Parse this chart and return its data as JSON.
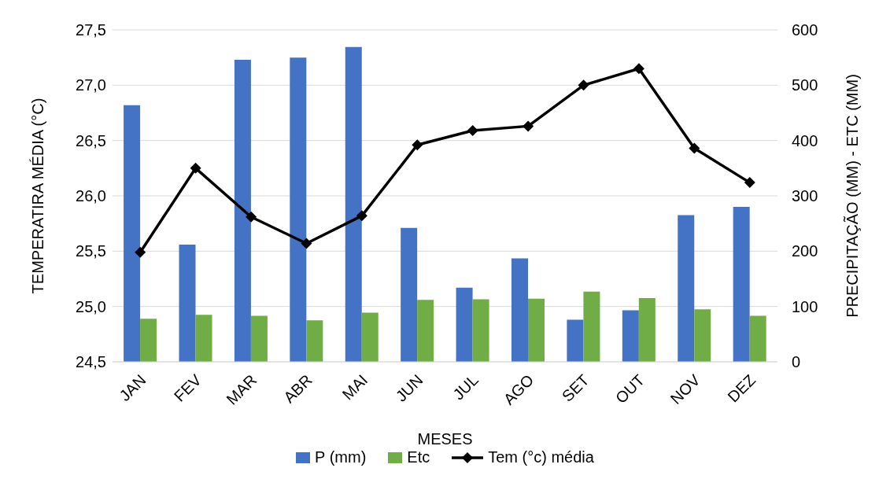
{
  "chart_data": {
    "type": "bar",
    "xlabel": "MESES",
    "ylabel": "TEMPERATIRA MÉDIA (°C)",
    "y2label": "PRECIPITAÇÃO (MM) - ETC (MM)",
    "categories": [
      "JAN",
      "FEV",
      "MAR",
      "ABR",
      "MAI",
      "JUN",
      "JUL",
      "AGO",
      "SET",
      "OUT",
      "NOV",
      "DEZ"
    ],
    "series": [
      {
        "name": "P (mm)",
        "color": "#4472c4",
        "axis": "y2",
        "values": [
          464,
          212,
          546,
          550,
          569,
          242,
          134,
          187,
          76,
          93,
          265,
          280
        ]
      },
      {
        "name": "Etc",
        "color": "#70ad47",
        "axis": "y2",
        "values": [
          78,
          85,
          83,
          75,
          89,
          112,
          113,
          114,
          127,
          115,
          95,
          83
        ]
      },
      {
        "name": "Tem (°c) média",
        "type": "line",
        "color": "#000000",
        "marker": "diamond",
        "values": [
          25.49,
          26.25,
          25.81,
          25.57,
          25.82,
          26.46,
          26.59,
          26.63,
          27.0,
          27.15,
          26.43,
          26.12
        ]
      }
    ],
    "ylim": [
      24.5,
      27.5
    ],
    "yticks": [
      {
        "value": 24.5,
        "label": "24,5"
      },
      {
        "value": 25,
        "label": "25,0"
      },
      {
        "value": 25.5,
        "label": "25,5"
      },
      {
        "value": 26,
        "label": "26,0"
      },
      {
        "value": 26.5,
        "label": "26,5"
      },
      {
        "value": 27,
        "label": "27,0"
      },
      {
        "value": 27.5,
        "label": "27,5"
      }
    ],
    "y2lim": [
      0,
      600
    ],
    "y2ticks": [
      0,
      100,
      200,
      300,
      400,
      500,
      600
    ],
    "grid": "y",
    "legend": "bottom"
  }
}
